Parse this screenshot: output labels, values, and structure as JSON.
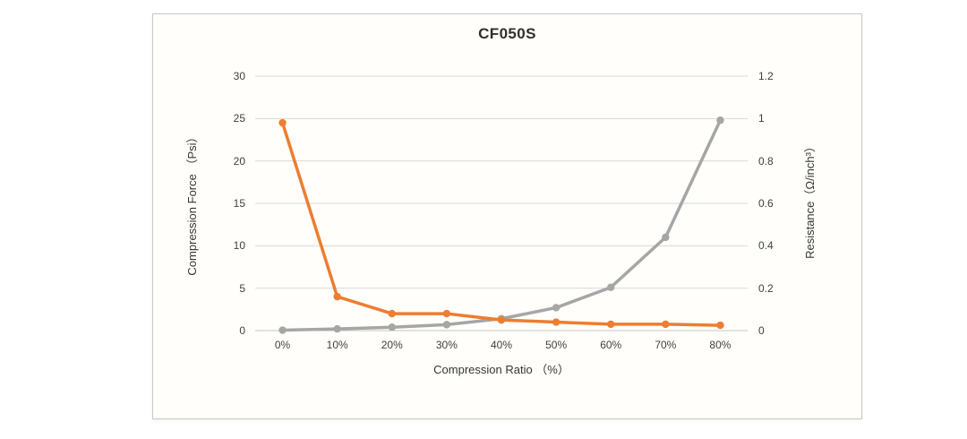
{
  "panel": {
    "title": "CF050S"
  },
  "chart_data": {
    "type": "line",
    "title": "CF050S",
    "categories": [
      "0%",
      "10%",
      "20%",
      "30%",
      "40%",
      "50%",
      "60%",
      "70%",
      "80%"
    ],
    "xlabel": "Compression Ratio （%）",
    "grid": true,
    "legend": "none",
    "left_axis": {
      "label": "Compression Force （Psi）",
      "range": [
        0,
        30
      ],
      "ticks": [
        "0",
        "5",
        "10",
        "15",
        "20",
        "25",
        "30"
      ],
      "tick_values": [
        0,
        5,
        10,
        15,
        20,
        25,
        30
      ]
    },
    "right_axis": {
      "label": "Resistance（Ω/inch³）",
      "range": [
        0,
        1.2
      ],
      "ticks": [
        "0",
        "0.2",
        "0.4",
        "0.6",
        "0.8",
        "1",
        "1.2"
      ],
      "tick_values": [
        0,
        0.2,
        0.4,
        0.6,
        0.8,
        1,
        1.2
      ]
    },
    "series": [
      {
        "name": "Compression Force",
        "axis": "left",
        "color": "#a6a6a6",
        "values": [
          0.05,
          0.2,
          0.4,
          0.7,
          1.4,
          2.7,
          5.1,
          11.0,
          24.8
        ]
      },
      {
        "name": "Resistance",
        "axis": "right",
        "color": "#ed7d31",
        "values": [
          0.98,
          0.16,
          0.08,
          0.08,
          0.05,
          0.04,
          0.03,
          0.03,
          0.025
        ]
      }
    ]
  },
  "colors": {
    "gridline": "#d9d9d9",
    "baseline": "#c6c6c6",
    "tick_text": "#3f3f3f",
    "panel_background": "#fffefa",
    "panel_border": "#c9c9c4"
  }
}
